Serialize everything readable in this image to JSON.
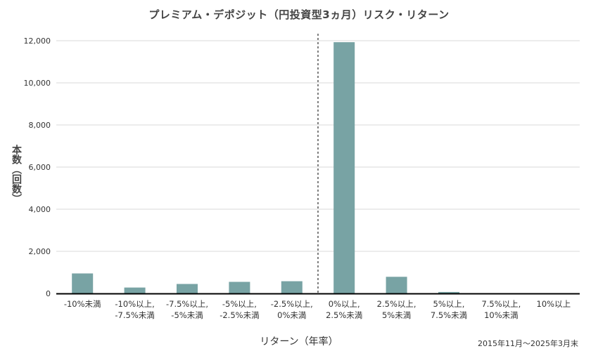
{
  "chart_data": {
    "type": "bar",
    "title": "プレミアム・デポジット（円投資型3ヵ月）リスク・リターン",
    "ylabel": "本数（回数）",
    "xlabel": "リターン（年率）",
    "footnote": "2015年11月～2025年3月末",
    "ylim": [
      0,
      12000
    ],
    "yticks": [
      "0",
      "2,000",
      "4,000",
      "6,000",
      "8,000",
      "10,000",
      "12,000"
    ],
    "ytick_values": [
      0,
      2000,
      4000,
      6000,
      8000,
      10000,
      12000
    ],
    "categories": [
      [
        "-10%未満"
      ],
      [
        "-10%以上,",
        "-7.5%未満"
      ],
      [
        "-7.5%以上,",
        "-5%未満"
      ],
      [
        "-5%以上,",
        "-2.5%未満"
      ],
      [
        "-2.5%以上,",
        "0%未満"
      ],
      [
        "0%以上,",
        "2.5%未満"
      ],
      [
        "2.5%以上,",
        "5%未満"
      ],
      [
        "5%以上,",
        "7.5%未満"
      ],
      [
        "7.5%以上,",
        "10%未満"
      ],
      [
        "10%以上"
      ]
    ],
    "values": [
      950,
      280,
      450,
      550,
      580,
      11930,
      790,
      70,
      0,
      0
    ],
    "grid": true,
    "reference_line": "between -2.5%以上,0%未満 and 0%以上,2.5%未満 (dashed)",
    "colors": {
      "bar": "#78a3a4",
      "grid": "#d9d9d9",
      "axis": "#000000"
    }
  }
}
